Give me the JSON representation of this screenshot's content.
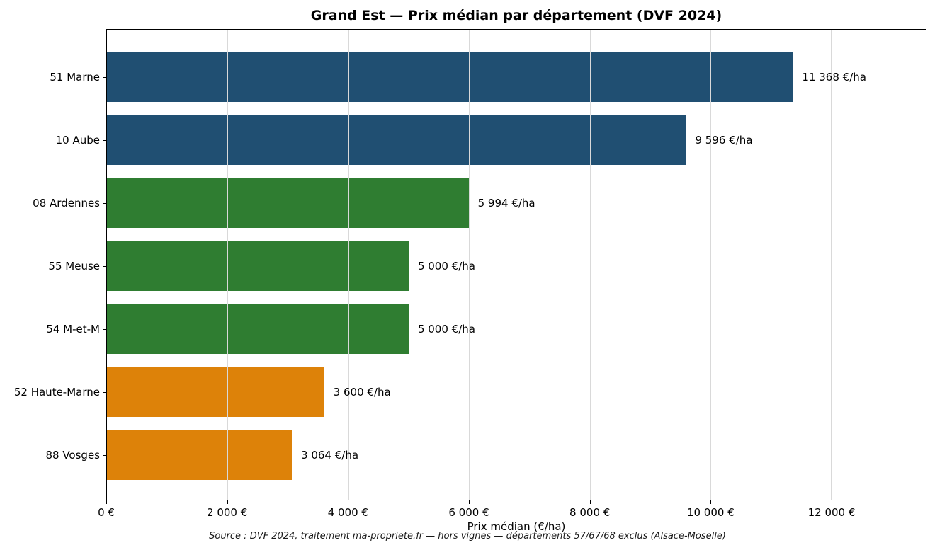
{
  "title": "Grand Est — Prix médian par département (DVF 2024)",
  "footer": "Source : DVF 2024, traitement ma-propriete.fr — hors vignes — départements 57/67/68 exclus (Alsace-Moselle)",
  "colors": {
    "bar_blue": "#204F72",
    "bar_green": "#2F7D31",
    "bar_orange": "#DD8209",
    "gridline": "#d9d9d9",
    "frame": "#000000"
  },
  "chart_data": {
    "type": "bar",
    "orientation": "horizontal",
    "title": "Grand Est — Prix médian par département (DVF 2024)",
    "xlabel": "Prix médian (€/ha)",
    "ylabel": "",
    "categories": [
      "51 Marne",
      "10 Aube",
      "08 Ardennes",
      "55 Meuse",
      "54 M-et-M",
      "52 Haute-Marne",
      "88 Vosges"
    ],
    "values": [
      11368,
      9596,
      5994,
      5000,
      5000,
      3600,
      3064
    ],
    "value_labels": [
      "11 368 €/ha",
      "9 596 €/ha",
      "5 994 €/ha",
      "5 000 €/ha",
      "5 000 €/ha",
      "3 600 €/ha",
      "3 064 €/ha"
    ],
    "bar_colors": [
      "#204F72",
      "#204F72",
      "#2F7D31",
      "#2F7D31",
      "#2F7D31",
      "#DD8209",
      "#DD8209"
    ],
    "xlim": [
      0,
      13570
    ],
    "xticks": [
      0,
      2000,
      4000,
      6000,
      8000,
      10000,
      12000
    ],
    "xtick_labels": [
      "0 €",
      "2 000 €",
      "4 000 €",
      "6 000 €",
      "8 000 €",
      "10 000 €",
      "12 000 €"
    ],
    "grid": true,
    "grid_axis": "x",
    "legend": false
  }
}
